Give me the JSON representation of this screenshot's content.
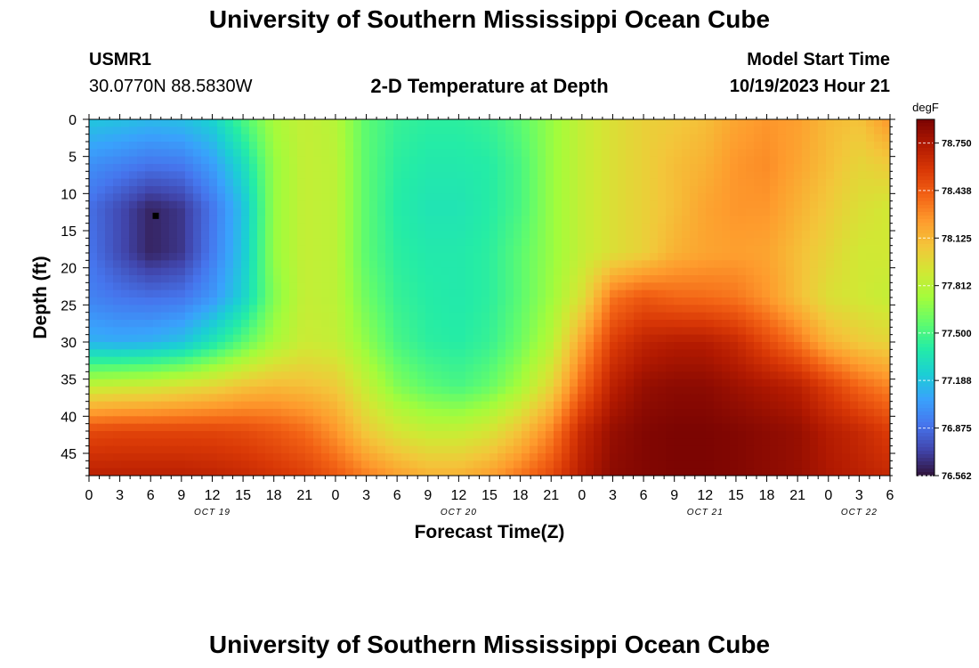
{
  "header": {
    "title": "University of Southern Mississippi Ocean Cube",
    "station_id": "USMR1",
    "station_coords": "30.0770N  88.5830W",
    "plot_title": "2-D Temperature at Depth",
    "model_label": "Model Start Time",
    "model_time": "10/19/2023 Hour 21"
  },
  "footer": {
    "title": "University of Southern Mississippi Ocean Cube"
  },
  "chart_data": {
    "type": "heatmap",
    "title": "2-D Temperature at Depth",
    "xlabel": "Forecast Time(Z)",
    "ylabel": "Depth (ft)",
    "x_tick_labels": [
      "0",
      "3",
      "6",
      "9",
      "12",
      "15",
      "18",
      "21",
      "0",
      "3",
      "6",
      "9",
      "12",
      "15",
      "18",
      "21",
      "0",
      "3",
      "6",
      "9",
      "12",
      "15",
      "18",
      "21",
      "0",
      "3",
      "6"
    ],
    "date_labels": [
      {
        "label": "OCT 19",
        "hour_index": 12
      },
      {
        "label": "OCT 20",
        "hour_index": 36
      },
      {
        "label": "OCT 21",
        "hour_index": 60
      },
      {
        "label": "OCT 22",
        "hour_index": 75
      }
    ],
    "x_range_hours": [
      0,
      78
    ],
    "y_tick_labels": [
      "0",
      "5",
      "10",
      "15",
      "20",
      "25",
      "30",
      "35",
      "40",
      "45"
    ],
    "y_range_ft": [
      0,
      48
    ],
    "y_inverted": true,
    "colorbar": {
      "unit": "degF",
      "range": [
        76.562,
        78.906
      ],
      "tick_labels": [
        "78.750",
        "78.438",
        "78.125",
        "77.812",
        "77.500",
        "77.188",
        "76.875",
        "76.562"
      ],
      "colormap": [
        "#30123b",
        "#4145ab",
        "#4675ed",
        "#39a2fc",
        "#1bcfd4",
        "#24eca6",
        "#61fc6c",
        "#a4fc3b",
        "#d1e834",
        "#f3c63a",
        "#fe9b2d",
        "#f36315",
        "#d93806",
        "#b11901",
        "#7a0402"
      ]
    },
    "marker": {
      "hour": 6.5,
      "depth_ft": 13
    },
    "anchor_x_hours": [
      0,
      3,
      6,
      9,
      12,
      15,
      18,
      21,
      24,
      27,
      30,
      33,
      36,
      39,
      42,
      45,
      48,
      51,
      54,
      57,
      60,
      63,
      66,
      69,
      72,
      75,
      78
    ],
    "anchor_depths_ft": [
      0,
      6,
      12,
      18,
      24,
      30,
      36,
      42,
      48
    ],
    "values_degF": [
      [
        77.2,
        77.18,
        77.15,
        77.17,
        77.25,
        77.5,
        77.75,
        77.85,
        77.8,
        77.55,
        77.45,
        77.42,
        77.42,
        77.45,
        77.55,
        77.7,
        77.85,
        77.95,
        78.02,
        78.05,
        78.1,
        78.2,
        78.25,
        78.22,
        78.12,
        78.08,
        78.25
      ],
      [
        77.0,
        76.95,
        76.9,
        76.92,
        77.05,
        77.3,
        77.7,
        77.85,
        77.82,
        77.55,
        77.42,
        77.38,
        77.38,
        77.4,
        77.5,
        77.7,
        77.85,
        77.95,
        78.02,
        78.1,
        78.15,
        78.25,
        78.28,
        78.2,
        78.1,
        78.0,
        78.05
      ],
      [
        76.88,
        76.75,
        76.62,
        76.68,
        76.9,
        77.18,
        77.7,
        77.85,
        77.82,
        77.55,
        77.4,
        77.35,
        77.35,
        77.4,
        77.5,
        77.7,
        77.85,
        77.95,
        78.02,
        78.1,
        78.2,
        78.25,
        78.25,
        78.15,
        78.05,
        77.95,
        77.9
      ],
      [
        76.9,
        76.75,
        76.62,
        76.68,
        76.92,
        77.2,
        77.7,
        77.85,
        77.82,
        77.55,
        77.42,
        77.38,
        77.38,
        77.42,
        77.55,
        77.7,
        77.85,
        77.95,
        78.02,
        78.15,
        78.2,
        78.22,
        78.2,
        78.1,
        78.0,
        77.9,
        77.9
      ],
      [
        76.95,
        76.9,
        76.88,
        76.9,
        77.02,
        77.25,
        77.65,
        77.85,
        77.82,
        77.6,
        77.45,
        77.4,
        77.38,
        77.42,
        77.55,
        77.72,
        77.95,
        78.35,
        78.45,
        78.4,
        78.38,
        78.35,
        78.25,
        78.1,
        77.95,
        77.9,
        77.85
      ],
      [
        77.12,
        77.1,
        77.12,
        77.18,
        77.35,
        77.55,
        77.75,
        77.88,
        77.85,
        77.68,
        77.5,
        77.42,
        77.4,
        77.45,
        77.6,
        77.8,
        78.2,
        78.55,
        78.68,
        78.72,
        78.72,
        78.65,
        78.5,
        78.35,
        78.15,
        78.05,
        78.0
      ],
      [
        77.85,
        77.88,
        77.9,
        77.95,
        78.0,
        78.08,
        78.12,
        78.1,
        78.05,
        77.85,
        77.65,
        77.55,
        77.5,
        77.58,
        77.75,
        78.0,
        78.4,
        78.7,
        78.82,
        78.85,
        78.85,
        78.8,
        78.75,
        78.7,
        78.55,
        78.4,
        78.3
      ],
      [
        78.5,
        78.52,
        78.52,
        78.52,
        78.52,
        78.5,
        78.45,
        78.38,
        78.25,
        78.05,
        77.92,
        77.85,
        77.85,
        77.92,
        78.08,
        78.3,
        78.65,
        78.82,
        78.88,
        78.9,
        78.9,
        78.88,
        78.85,
        78.82,
        78.72,
        78.65,
        78.55
      ],
      [
        78.7,
        78.7,
        78.7,
        78.7,
        78.68,
        78.65,
        78.6,
        78.55,
        78.45,
        78.32,
        78.22,
        78.15,
        78.15,
        78.22,
        78.35,
        78.5,
        78.72,
        78.85,
        78.88,
        78.9,
        78.9,
        78.88,
        78.85,
        78.82,
        78.75,
        78.7,
        78.65
      ]
    ]
  }
}
